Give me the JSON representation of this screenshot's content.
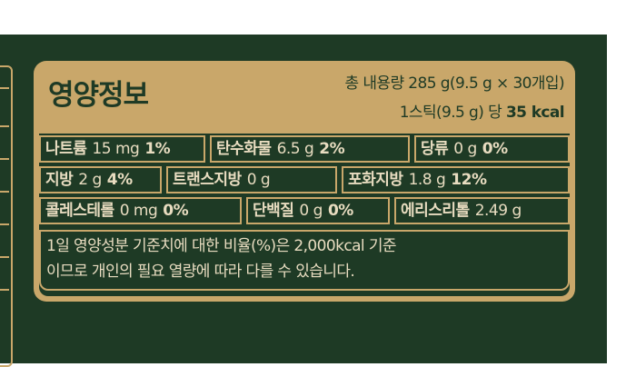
{
  "panel": {
    "title": "영양정보",
    "total_content": "총 내용량 285 g(9.5 g × 30개입)",
    "serving_prefix": "1스틱(9.5 g) 당 ",
    "calories": "35 kcal"
  },
  "nutrients": [
    [
      {
        "name": "나트륨",
        "amount": "15 mg",
        "dv": "1%"
      },
      {
        "name": "탄수화물",
        "amount": "6.5 g",
        "dv": "2%"
      },
      {
        "name": "당류",
        "amount": "0 g",
        "dv": "0%"
      }
    ],
    [
      {
        "name": "지방",
        "amount": "2 g",
        "dv": "4%"
      },
      {
        "name": "트랜스지방",
        "amount": "0 g",
        "dv": ""
      },
      {
        "name": "포화지방",
        "amount": "1.8 g",
        "dv": "12%"
      }
    ],
    [
      {
        "name": "콜레스테롤",
        "amount": "0 mg",
        "dv": "0%"
      },
      {
        "name": "단백질",
        "amount": "0 g",
        "dv": "0%"
      },
      {
        "name": "에리스리톨",
        "amount": "2.49 g",
        "dv": ""
      }
    ]
  ],
  "note": {
    "line1": "1일 영양성분 기준치에 대한 비율(%)은 2,000kcal 기준",
    "line2": "이므로 개인의 필요 열량에 따라 다를 수 있습니다."
  },
  "colors": {
    "package_green": "#1e3a25",
    "gold": "#c9a76a",
    "cream_text": "#e8dcc0"
  }
}
